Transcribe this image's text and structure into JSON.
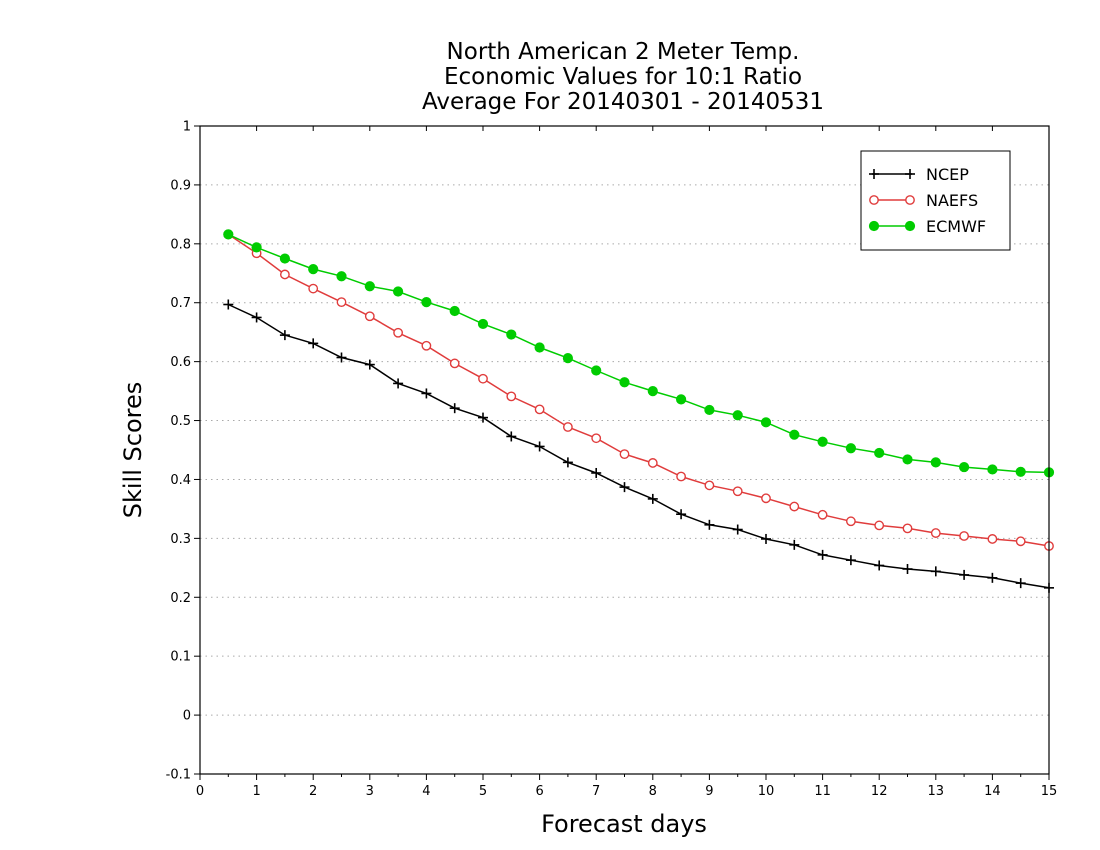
{
  "chart_data": {
    "type": "line",
    "title_lines": [
      "North American 2 Meter Temp.",
      "Economic Values for 10:1 Ratio",
      "Average For 20140301 - 20140531"
    ],
    "xlabel": "Forecast days",
    "ylabel": "Skill Scores",
    "xlim": [
      0,
      15
    ],
    "ylim": [
      -0.1,
      1
    ],
    "xticks": [
      0,
      1,
      2,
      3,
      4,
      5,
      6,
      7,
      8,
      9,
      10,
      11,
      12,
      13,
      14,
      15
    ],
    "xtick_labels": [
      "0",
      "1",
      "2",
      "3",
      "4",
      "5",
      "6",
      "7",
      "8",
      "9",
      "10",
      "11",
      "12",
      "13",
      "14",
      "15"
    ],
    "yticks": [
      -0.1,
      0,
      0.1,
      0.2,
      0.3,
      0.4,
      0.5,
      0.6,
      0.7,
      0.8,
      0.9,
      1
    ],
    "ytick_labels": [
      "-0.1",
      "0",
      "0.1",
      "0.2",
      "0.3",
      "0.4",
      "0.5",
      "0.6",
      "0.7",
      "0.8",
      "0.9",
      "1"
    ],
    "grid": "horizontal-dotted",
    "legend_position": "top-right",
    "x": [
      0.5,
      1,
      1.5,
      2,
      2.5,
      3,
      3.5,
      4,
      4.5,
      5,
      5.5,
      6,
      6.5,
      7,
      7.5,
      8,
      8.5,
      9,
      9.5,
      10,
      10.5,
      11,
      11.5,
      12,
      12.5,
      13,
      13.5,
      14,
      14.5,
      15
    ],
    "series": [
      {
        "name": "NCEP",
        "color": "#000000",
        "marker": "plus",
        "values": [
          0.697,
          0.675,
          0.645,
          0.631,
          0.607,
          0.595,
          0.563,
          0.546,
          0.521,
          0.505,
          0.473,
          0.456,
          0.429,
          0.411,
          0.387,
          0.367,
          0.341,
          0.323,
          0.315,
          0.299,
          0.289,
          0.272,
          0.263,
          0.254,
          0.248,
          0.244,
          0.238,
          0.233,
          0.224,
          0.216
        ]
      },
      {
        "name": "NAEFS",
        "color": "#e03c3c",
        "marker": "open-circle",
        "values": [
          0.816,
          0.784,
          0.748,
          0.724,
          0.701,
          0.677,
          0.649,
          0.627,
          0.597,
          0.571,
          0.541,
          0.519,
          0.489,
          0.47,
          0.443,
          0.428,
          0.405,
          0.39,
          0.38,
          0.368,
          0.354,
          0.34,
          0.329,
          0.322,
          0.317,
          0.309,
          0.304,
          0.299,
          0.295,
          0.287
        ]
      },
      {
        "name": "ECMWF",
        "color": "#00cc00",
        "marker": "filled-circle",
        "values": [
          0.816,
          0.794,
          0.775,
          0.757,
          0.745,
          0.728,
          0.719,
          0.701,
          0.686,
          0.664,
          0.646,
          0.624,
          0.606,
          0.585,
          0.565,
          0.55,
          0.536,
          0.518,
          0.509,
          0.497,
          0.476,
          0.464,
          0.453,
          0.445,
          0.434,
          0.429,
          0.421,
          0.417,
          0.413,
          0.412
        ]
      }
    ]
  }
}
